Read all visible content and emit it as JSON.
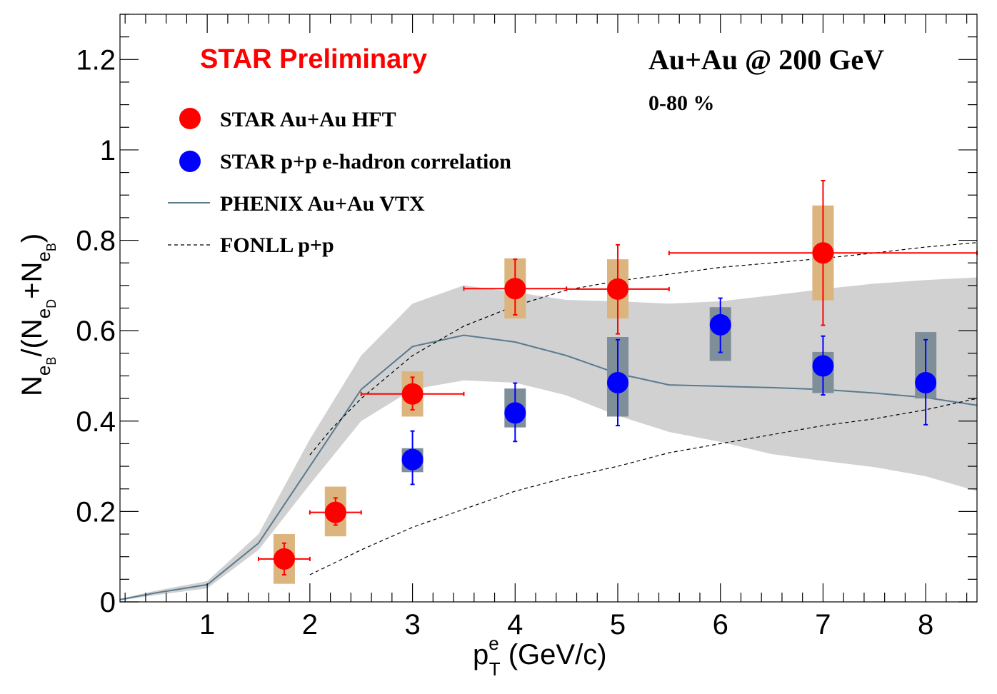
{
  "chart_data": {
    "type": "scatter",
    "xlabel": {
      "main": "p",
      "sup": "e",
      "sub": "T",
      "unit": " (GeV/c)"
    },
    "ylabel": {
      "n1": "N",
      "e1": "e",
      "b1": "B",
      "slash": "/(N",
      "e2": "e",
      "d2": "D",
      "plus": "+N",
      "e3": "e",
      "b3": "B",
      "close": ")"
    },
    "xlim": [
      0.15,
      8.5
    ],
    "ylim": [
      0,
      1.3
    ],
    "x_ticks": [
      {
        "v": 1,
        "label": "1"
      },
      {
        "v": 2,
        "label": "2"
      },
      {
        "v": 3,
        "label": "3"
      },
      {
        "v": 4,
        "label": "4"
      },
      {
        "v": 5,
        "label": "5"
      },
      {
        "v": 6,
        "label": "6"
      },
      {
        "v": 7,
        "label": "7"
      },
      {
        "v": 8,
        "label": "8"
      }
    ],
    "y_ticks": [
      {
        "v": 0,
        "label": "0"
      },
      {
        "v": 0.2,
        "label": "0.2"
      },
      {
        "v": 0.4,
        "label": "0.4"
      },
      {
        "v": 0.6,
        "label": "0.6"
      },
      {
        "v": 0.8,
        "label": "0.8"
      },
      {
        "v": 1.0,
        "label": "1"
      },
      {
        "v": 1.2,
        "label": "1.2"
      }
    ],
    "annotations": {
      "preliminary": "STAR Preliminary",
      "system": "Au+Au @ 200 GeV",
      "centrality": "0-80 %"
    },
    "legend_position": "top-left",
    "series": [
      {
        "name": "STAR Au+Au HFT",
        "kind": "points",
        "color": "#ff0000",
        "sys_color": "#dcb47e",
        "points": [
          {
            "x": 1.75,
            "y": 0.095,
            "xlo": 1.5,
            "xhi": 2.0,
            "ylo": 0.06,
            "yhi": 0.13,
            "slo": 0.04,
            "shi": 0.15
          },
          {
            "x": 2.25,
            "y": 0.198,
            "xlo": 2.0,
            "xhi": 2.5,
            "ylo": 0.17,
            "yhi": 0.23,
            "slo": 0.145,
            "shi": 0.255
          },
          {
            "x": 3.0,
            "y": 0.46,
            "xlo": 2.5,
            "xhi": 3.5,
            "ylo": 0.425,
            "yhi": 0.497,
            "slo": 0.41,
            "shi": 0.51
          },
          {
            "x": 4.0,
            "y": 0.693,
            "xlo": 3.5,
            "xhi": 4.5,
            "ylo": 0.635,
            "yhi": 0.758,
            "slo": 0.627,
            "shi": 0.76
          },
          {
            "x": 5.0,
            "y": 0.692,
            "xlo": 4.5,
            "xhi": 5.5,
            "ylo": 0.593,
            "yhi": 0.79,
            "slo": 0.627,
            "shi": 0.758
          },
          {
            "x": 7.0,
            "y": 0.772,
            "xlo": 5.5,
            "xhi": 8.5,
            "ylo": 0.612,
            "yhi": 0.932,
            "slo": 0.667,
            "shi": 0.877
          }
        ]
      },
      {
        "name": "STAR p+p e-hadron correlation",
        "kind": "points",
        "color": "#0000ff",
        "sys_color": "#7f8f9a",
        "points": [
          {
            "x": 3.0,
            "y": 0.315,
            "ylo": 0.26,
            "yhi": 0.378,
            "slo": 0.287,
            "shi": 0.34
          },
          {
            "x": 4.0,
            "y": 0.418,
            "ylo": 0.355,
            "yhi": 0.484,
            "slo": 0.386,
            "shi": 0.472
          },
          {
            "x": 5.0,
            "y": 0.485,
            "ylo": 0.39,
            "yhi": 0.58,
            "slo": 0.41,
            "shi": 0.586
          },
          {
            "x": 6.0,
            "y": 0.613,
            "ylo": 0.552,
            "yhi": 0.672,
            "slo": 0.533,
            "shi": 0.652
          },
          {
            "x": 7.0,
            "y": 0.522,
            "ylo": 0.458,
            "yhi": 0.588,
            "slo": 0.462,
            "shi": 0.553
          },
          {
            "x": 8.0,
            "y": 0.485,
            "ylo": 0.392,
            "yhi": 0.58,
            "slo": 0.45,
            "shi": 0.597
          }
        ]
      },
      {
        "name": "PHENIX Au+Au VTX",
        "kind": "band_line",
        "color": "#5a7a8e",
        "band_color": "#cfcfcf",
        "x": [
          0.15,
          0.5,
          1.0,
          1.5,
          2.0,
          2.5,
          3.0,
          3.5,
          4.0,
          4.5,
          5.0,
          5.5,
          6.0,
          6.5,
          7.0,
          7.5,
          8.0,
          8.5
        ],
        "y": [
          0.005,
          0.02,
          0.038,
          0.13,
          0.3,
          0.47,
          0.565,
          0.59,
          0.575,
          0.545,
          0.505,
          0.48,
          0.477,
          0.474,
          0.47,
          0.462,
          0.452,
          0.435
        ],
        "ylow": [
          0.003,
          0.015,
          0.03,
          0.115,
          0.26,
          0.4,
          0.47,
          0.49,
          0.485,
          0.457,
          0.412,
          0.376,
          0.354,
          0.327,
          0.312,
          0.298,
          0.278,
          0.245
        ],
        "yhigh": [
          0.007,
          0.025,
          0.046,
          0.15,
          0.36,
          0.545,
          0.66,
          0.7,
          0.685,
          0.668,
          0.665,
          0.66,
          0.665,
          0.678,
          0.692,
          0.704,
          0.712,
          0.718
        ]
      },
      {
        "name": "FONLL p+p",
        "kind": "dashed_lines",
        "color": "#000000",
        "upper": {
          "x": [
            2.0,
            2.2,
            2.5,
            3.0,
            3.5,
            4.0,
            4.5,
            5.0,
            5.5,
            6.0,
            6.5,
            7.0,
            7.5,
            8.0,
            8.5
          ],
          "y": [
            0.325,
            0.38,
            0.45,
            0.545,
            0.61,
            0.655,
            0.69,
            0.71,
            0.725,
            0.74,
            0.75,
            0.76,
            0.772,
            0.785,
            0.795
          ]
        },
        "lower": {
          "x": [
            2.0,
            2.5,
            3.0,
            3.5,
            4.0,
            4.5,
            5.0,
            5.5,
            6.0,
            6.5,
            7.0,
            7.5,
            8.0,
            8.5
          ],
          "y": [
            0.06,
            0.115,
            0.165,
            0.205,
            0.245,
            0.275,
            0.3,
            0.33,
            0.35,
            0.37,
            0.39,
            0.405,
            0.425,
            0.45
          ]
        }
      }
    ]
  }
}
